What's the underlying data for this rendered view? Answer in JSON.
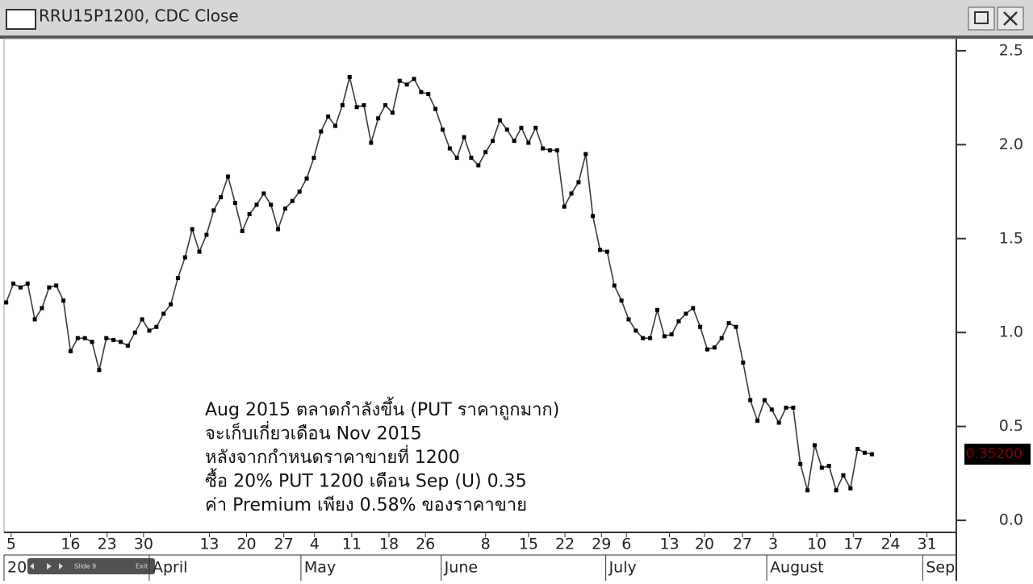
{
  "window": {
    "title": "RRU15P1200, CDC Close"
  },
  "player": {
    "slide": "Slide 9",
    "exit": "Exit"
  },
  "chart_data": {
    "type": "line",
    "annotation": [
      "Aug 2015 ตลาดกำลังขึ้น (PUT ราคาถูกมาก)",
      "จะเก็บเกี่ยวเดือน Nov 2015",
      "หลังจากกำหนดราคาขายที่ 1200",
      "ซื้อ 20% PUT 1200 เดือน Sep (U) 0.35",
      "ค่า Premium เพียง 0.58% ของราคาขาย"
    ],
    "series": [
      {
        "name": "RRU15P1200",
        "color": "#3a3a3a",
        "values": [
          1.16,
          1.26,
          1.24,
          1.26,
          1.07,
          1.13,
          1.24,
          1.25,
          1.17,
          0.9,
          0.97,
          0.97,
          0.95,
          0.8,
          0.97,
          0.96,
          0.95,
          0.93,
          1.0,
          1.07,
          1.01,
          1.03,
          1.1,
          1.15,
          1.29,
          1.4,
          1.55,
          1.43,
          1.52,
          1.65,
          1.72,
          1.83,
          1.69,
          1.54,
          1.63,
          1.68,
          1.74,
          1.68,
          1.55,
          1.66,
          1.7,
          1.75,
          1.82,
          1.93,
          2.07,
          2.15,
          2.1,
          2.21,
          2.36,
          2.2,
          2.21,
          2.01,
          2.14,
          2.21,
          2.17,
          2.34,
          2.32,
          2.35,
          2.28,
          2.27,
          2.19,
          2.08,
          1.98,
          1.93,
          2.04,
          1.93,
          1.89,
          1.96,
          2.02,
          2.13,
          2.08,
          2.02,
          2.09,
          2.01,
          2.09,
          1.98,
          1.97,
          1.97,
          1.67,
          1.74,
          1.8,
          1.95,
          1.62,
          1.44,
          1.43,
          1.25,
          1.17,
          1.07,
          1.01,
          0.97,
          0.97,
          1.12,
          0.98,
          0.99,
          1.06,
          1.1,
          1.13,
          1.03,
          0.91,
          0.92,
          0.97,
          1.05,
          1.03,
          0.84,
          0.64,
          0.53,
          0.64,
          0.59,
          0.52,
          0.6,
          0.6,
          0.3,
          0.16,
          0.4,
          0.28,
          0.29,
          0.16,
          0.24,
          0.17,
          0.38,
          0.36,
          0.352
        ],
        "value_labels": [
          null,
          null,
          null,
          null,
          null,
          null,
          null,
          null,
          null,
          null,
          null,
          null,
          null,
          null,
          null,
          null,
          null,
          null,
          null,
          null,
          null,
          null,
          null,
          null,
          null,
          null,
          null,
          null,
          null,
          null,
          null,
          null,
          null,
          null,
          null,
          null,
          null,
          null,
          null,
          null,
          null,
          null,
          null,
          null,
          null,
          null,
          null,
          null,
          null,
          null,
          null,
          null,
          null,
          null,
          null,
          null,
          null,
          null,
          null,
          null,
          null,
          null,
          null,
          null,
          null,
          null,
          null,
          null,
          null,
          null,
          null,
          null,
          null,
          null,
          null,
          null,
          null,
          null,
          null,
          null,
          null,
          null,
          null,
          null,
          null,
          null,
          null,
          null,
          null,
          null,
          null,
          null,
          null,
          null,
          null,
          null,
          null,
          null,
          null,
          null,
          null,
          null,
          null,
          null,
          null,
          null,
          null,
          null,
          null,
          null,
          null,
          null,
          null,
          null,
          null,
          null,
          null,
          null,
          null,
          null,
          null,
          "0.35200"
        ]
      }
    ],
    "xlim": [
      -0.3,
      132.8
    ],
    "xticks": [
      {
        "value": 0.7,
        "label": "5"
      },
      {
        "value": 9.0,
        "label": "16"
      },
      {
        "value": 14.1,
        "label": "23"
      },
      {
        "value": 19.2,
        "label": "30"
      },
      {
        "value": 28.4,
        "label": "13"
      },
      {
        "value": 33.6,
        "label": "20"
      },
      {
        "value": 38.8,
        "label": "27"
      },
      {
        "value": 43.1,
        "label": "4"
      },
      {
        "value": 48.3,
        "label": "11"
      },
      {
        "value": 53.5,
        "label": "18"
      },
      {
        "value": 58.6,
        "label": "26"
      },
      {
        "value": 67.0,
        "label": "8"
      },
      {
        "value": 73.0,
        "label": "15"
      },
      {
        "value": 78.1,
        "label": "22"
      },
      {
        "value": 83.2,
        "label": "29"
      },
      {
        "value": 86.7,
        "label": "6"
      },
      {
        "value": 92.7,
        "label": "13"
      },
      {
        "value": 97.6,
        "label": "20"
      },
      {
        "value": 102.9,
        "label": "27"
      },
      {
        "value": 107.2,
        "label": "3"
      },
      {
        "value": 113.3,
        "label": "10"
      },
      {
        "value": 118.4,
        "label": "17"
      },
      {
        "value": 123.6,
        "label": "24"
      },
      {
        "value": 128.7,
        "label": "31"
      }
    ],
    "month_ticks": [
      {
        "value": -0.3,
        "label": "20"
      },
      {
        "value": 20.0,
        "label": "April"
      },
      {
        "value": 41.2,
        "label": "May"
      },
      {
        "value": 60.8,
        "label": "June"
      },
      {
        "value": 83.8,
        "label": "July"
      },
      {
        "value": 106.3,
        "label": "August"
      },
      {
        "value": 128.1,
        "label": "Sep"
      }
    ],
    "ylim": [
      -0.064,
      2.564
    ],
    "yticks": [
      {
        "value": 0,
        "label": "0.0"
      },
      0.5,
      {
        "value": 1,
        "label": "1.0"
      },
      1.5,
      {
        "value": 2,
        "label": "2.0"
      },
      2.5
    ],
    "last_value_color": "#8b0000"
  }
}
